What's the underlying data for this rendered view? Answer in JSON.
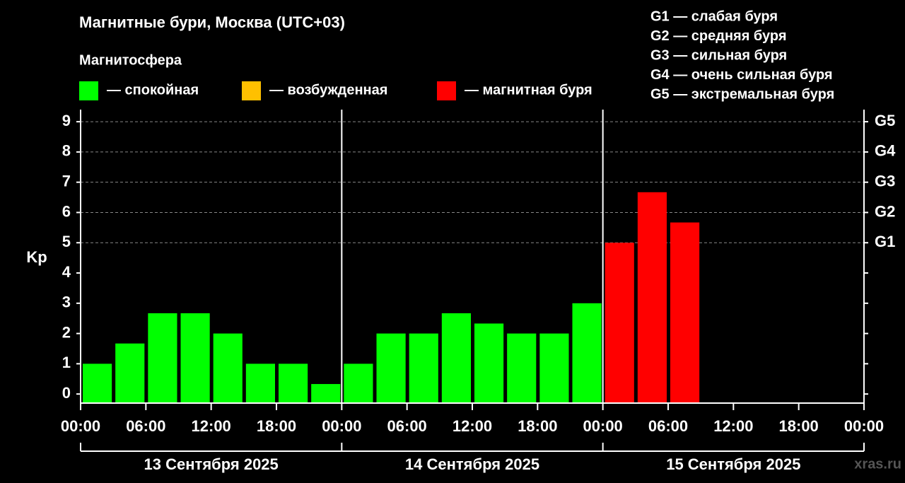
{
  "chart_data": {
    "type": "bar",
    "title": "Магнитные бури, Москва (UTC+03)",
    "legend_title": "Магнитосфера",
    "legend": [
      {
        "name": "— спокойная",
        "color": "#00ff00"
      },
      {
        "name": "— возбужденная",
        "color": "#ffc000"
      },
      {
        "name": "— магнитная буря",
        "color": "#ff0000"
      }
    ],
    "scale_notes": [
      "G1 — слабая буря",
      "G2 — средняя буря",
      "G3 — сильная буря",
      "G4 — очень сильная буря",
      "G5 — экстремальная буря"
    ],
    "y_label": "Kp",
    "x": [
      0,
      3,
      6,
      9,
      12,
      15,
      18,
      21,
      24,
      27,
      30,
      33,
      36,
      39,
      42,
      45,
      48,
      51,
      54
    ],
    "values": [
      1,
      1.67,
      2.67,
      2.67,
      2,
      1,
      1,
      0.33,
      1,
      2,
      2,
      2.67,
      2.33,
      2,
      2,
      3,
      5,
      6.67,
      5.67
    ],
    "colors": [
      "#00ff00",
      "#00ff00",
      "#00ff00",
      "#00ff00",
      "#00ff00",
      "#00ff00",
      "#00ff00",
      "#00ff00",
      "#00ff00",
      "#00ff00",
      "#00ff00",
      "#00ff00",
      "#00ff00",
      "#00ff00",
      "#00ff00",
      "#00ff00",
      "#ff0000",
      "#ff0000",
      "#ff0000"
    ],
    "xlim": [
      0,
      72
    ],
    "xticks": [
      {
        "value": 0,
        "label": "00:00"
      },
      {
        "value": 6,
        "label": "06:00"
      },
      {
        "value": 12,
        "label": "12:00"
      },
      {
        "value": 18,
        "label": "18:00"
      },
      {
        "value": 24,
        "label": "00:00"
      },
      {
        "value": 30,
        "label": "06:00"
      },
      {
        "value": 36,
        "label": "12:00"
      },
      {
        "value": 42,
        "label": "18:00"
      },
      {
        "value": 48,
        "label": "00:00"
      },
      {
        "value": 54,
        "label": "06:00"
      },
      {
        "value": 60,
        "label": "12:00"
      },
      {
        "value": 66,
        "label": "18:00"
      },
      {
        "value": 72,
        "label": "00:00"
      }
    ],
    "days": [
      "13 Сентября 2025",
      "14 Сентября 2025",
      "15 Сентября 2025"
    ],
    "ylim": [
      -0.3,
      9.4
    ],
    "yticks": [
      0,
      1,
      2,
      3,
      4,
      5,
      6,
      7,
      8,
      9
    ],
    "y2ticks": [
      {
        "value": 5,
        "label": "G1"
      },
      {
        "value": 6,
        "label": "G2"
      },
      {
        "value": 7,
        "label": "G3"
      },
      {
        "value": 8,
        "label": "G4"
      },
      {
        "value": 9,
        "label": "G5"
      }
    ],
    "grid": true,
    "watermark": "xras.ru"
  }
}
